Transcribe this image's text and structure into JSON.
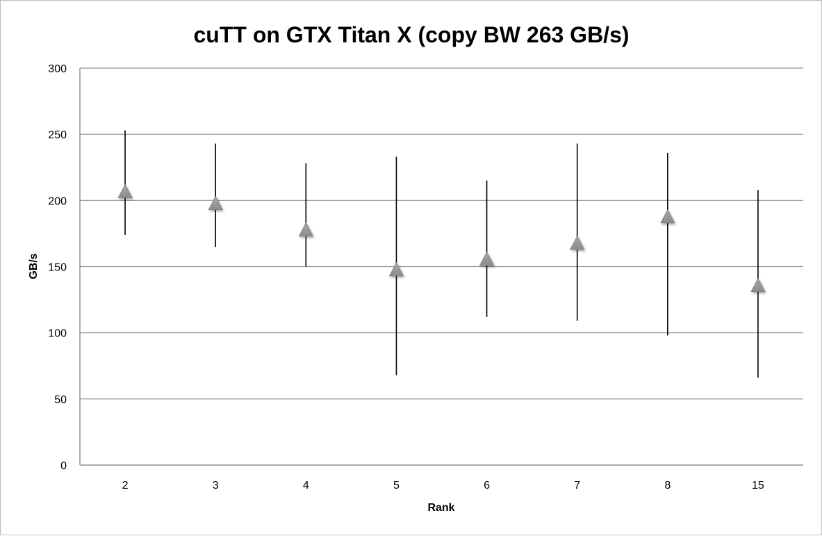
{
  "chart_data": {
    "type": "scatter",
    "title": "cuTT on GTX Titan X (copy BW 263 GB/s)",
    "xlabel": "Rank",
    "ylabel": "GB/s",
    "ylim": [
      0,
      300
    ],
    "y_ticks": [
      "0",
      "50",
      "100",
      "150",
      "200",
      "250",
      "300"
    ],
    "grid": true,
    "legend": "none",
    "marker": "triangle",
    "marker_color": "#8c8c8c",
    "categories": [
      "2",
      "3",
      "4",
      "5",
      "6",
      "7",
      "8",
      "15"
    ],
    "series": [
      {
        "values": [
          206,
          197,
          177,
          147,
          155,
          167,
          187,
          135
        ],
        "high": [
          253,
          243,
          228,
          233,
          215,
          243,
          236,
          208
        ],
        "low": [
          174,
          165,
          150,
          68,
          112,
          109,
          98,
          66
        ]
      }
    ]
  }
}
